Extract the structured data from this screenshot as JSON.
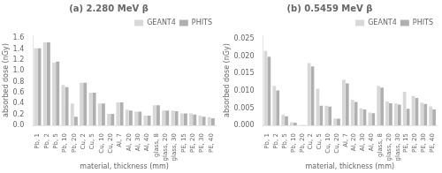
{
  "chart_data": [
    {
      "type": "bar",
      "title": "(a) 2.280 MeV β",
      "xlabel": "material, thickness (mm)",
      "ylabel": "absorbed dose (nGy)",
      "categories": [
        "Pb, 1",
        "Pb, 2",
        "Pb, 5",
        "Pb, 10",
        "Pb, 20",
        "Cu, 2",
        "Cu, 5",
        "Cu, 10",
        "Cu, 20",
        "Al, 7",
        "Al, 20",
        "Al, 30",
        "Al, 40",
        "glass, 8",
        "glass, 20",
        "glass, 30",
        "PE, 15",
        "PE, 20",
        "PE, 30",
        "PE, 40"
      ],
      "series": [
        {
          "name": "GEANT4",
          "color": "#d8d8d8",
          "values": [
            1.41,
            1.52,
            1.15,
            0.74,
            0.4,
            0.78,
            0.6,
            0.4,
            0.21,
            0.42,
            0.29,
            0.25,
            0.18,
            0.37,
            0.27,
            0.27,
            0.22,
            0.22,
            0.18,
            0.15
          ]
        },
        {
          "name": "PHITS",
          "color": "#b0b0b0",
          "values": [
            1.41,
            1.52,
            1.17,
            0.7,
            0.16,
            0.78,
            0.6,
            0.4,
            0.21,
            0.42,
            0.27,
            0.25,
            0.18,
            0.37,
            0.27,
            0.26,
            0.22,
            0.2,
            0.16,
            0.13
          ]
        }
      ],
      "ylim": [
        0.0,
        1.65
      ],
      "yticks": [
        {
          "value": 0.0,
          "label": "0.0"
        },
        0.2,
        0.4,
        0.6,
        0.8,
        {
          "value": 1.0,
          "label": "1.0"
        },
        1.2,
        1.4,
        1.6
      ],
      "grid": false,
      "legend": "upper right"
    },
    {
      "type": "bar",
      "title": "(b) 0.5459 MeV β",
      "xlabel": "material, thickness (mm)",
      "ylabel": "absorbed dose (nGy)",
      "categories": [
        "Pb, 1",
        "Pb, 2",
        "Pb, 5",
        "Pb, 10",
        "Pb, 20",
        "Cu, 2",
        "Cu, 5",
        "Cu, 10",
        "Cu, 20",
        "Al, 7",
        "Al, 20",
        "Al, 30",
        "Al, 40",
        "glass, 8",
        "glass, 20",
        "glass, 30",
        "PE, 15",
        "PE, 20",
        "PE, 30",
        "PE, 40"
      ],
      "series": [
        {
          "name": "GEANT4",
          "color": "#d8d8d8",
          "values": [
            0.0215,
            0.0114,
            0.0031,
            0.0009,
            0.0001,
            0.018,
            0.0106,
            0.0057,
            0.002,
            0.0132,
            0.0074,
            0.0049,
            0.0037,
            0.0114,
            0.0069,
            0.0063,
            0.0097,
            0.0085,
            0.0066,
            0.0055
          ]
        },
        {
          "name": "PHITS",
          "color": "#b0b0b0",
          "values": [
            0.0198,
            0.0101,
            0.0026,
            0.0008,
            0.0001,
            0.017,
            0.0057,
            0.0054,
            0.0019,
            0.0121,
            0.0068,
            0.0046,
            0.0035,
            0.0109,
            0.0064,
            0.006,
            0.0048,
            0.0079,
            0.0062,
            0.0046
          ]
        }
      ],
      "ylim": [
        0.0,
        0.026
      ],
      "yticks": [
        {
          "value": 0.0,
          "label": "0.000"
        },
        {
          "value": 0.005,
          "label": "0.005"
        },
        {
          "value": 0.01,
          "label": "0.010"
        },
        {
          "value": 0.015,
          "label": "0.015"
        },
        {
          "value": 0.02,
          "label": "0.020"
        },
        {
          "value": 0.025,
          "label": "0.025"
        }
      ],
      "grid": false,
      "legend": "upper right"
    }
  ]
}
